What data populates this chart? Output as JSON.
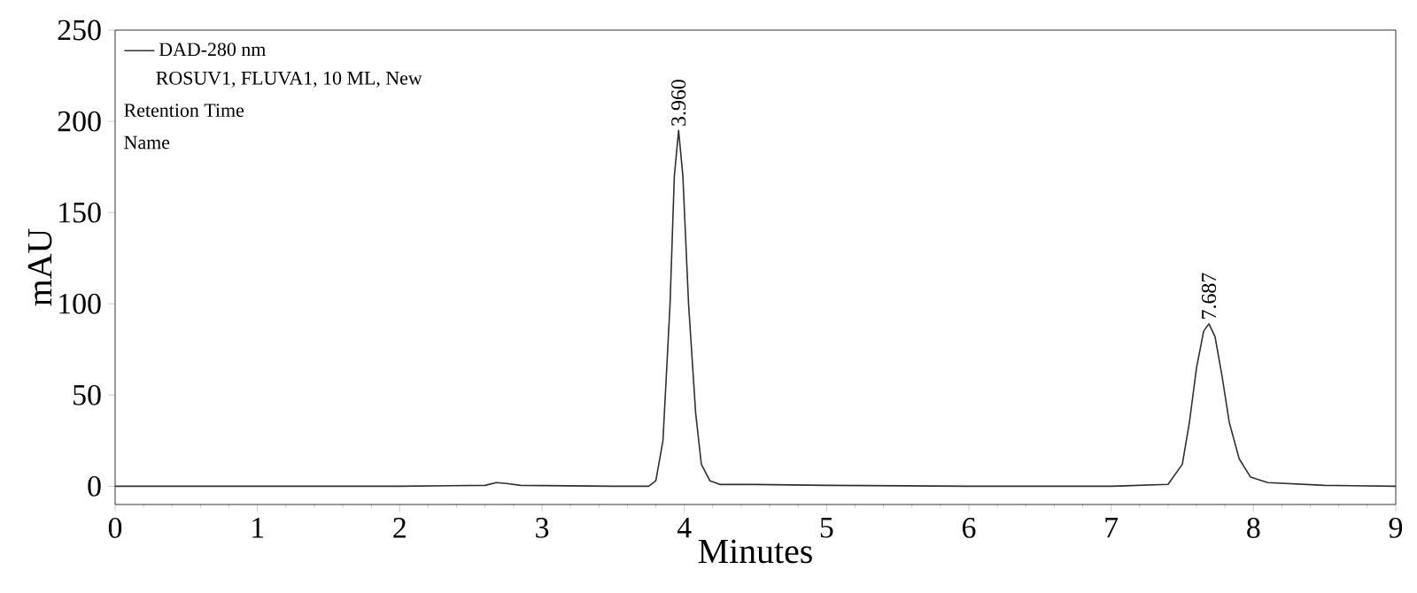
{
  "chart_data": {
    "type": "line",
    "xlabel": "Minutes",
    "ylabel": "mAU",
    "xlim": [
      0,
      9
    ],
    "ylim": [
      -10,
      250
    ],
    "xticks": [
      0,
      1,
      2,
      3,
      4,
      5,
      6,
      7,
      8,
      9
    ],
    "yticks": [
      0,
      50,
      100,
      150,
      200,
      250
    ],
    "legend": "top left",
    "grid": false,
    "marker": "none",
    "line_style": "solid",
    "series": [
      {
        "name": "DAD-280 nm",
        "color": "#303030",
        "x": [
          0,
          1,
          2,
          2.6,
          2.68,
          2.75,
          2.85,
          3.5,
          3.75,
          3.8,
          3.85,
          3.9,
          3.93,
          3.96,
          3.99,
          4.03,
          4.08,
          4.12,
          4.18,
          4.25,
          4.5,
          5,
          6,
          7,
          7.4,
          7.5,
          7.55,
          7.6,
          7.65,
          7.687,
          7.73,
          7.78,
          7.83,
          7.9,
          7.98,
          8.1,
          8.5,
          9
        ],
        "values": [
          0,
          0,
          0,
          0.5,
          2,
          1.5,
          0.5,
          0,
          0,
          3,
          25,
          100,
          170,
          195,
          170,
          100,
          40,
          12,
          3,
          1,
          1,
          0.5,
          0,
          0,
          1,
          12,
          35,
          65,
          85,
          89,
          82,
          60,
          35,
          15,
          5,
          2,
          0.5,
          0
        ]
      }
    ],
    "annotations": [
      "ROSUV1, FLUVA1, 10 ML, New",
      "Retention Time",
      "Name",
      {
        "text": "3.960",
        "x": 3.96,
        "y": 195
      },
      {
        "text": "7.687",
        "x": 7.687,
        "y": 89
      }
    ]
  }
}
